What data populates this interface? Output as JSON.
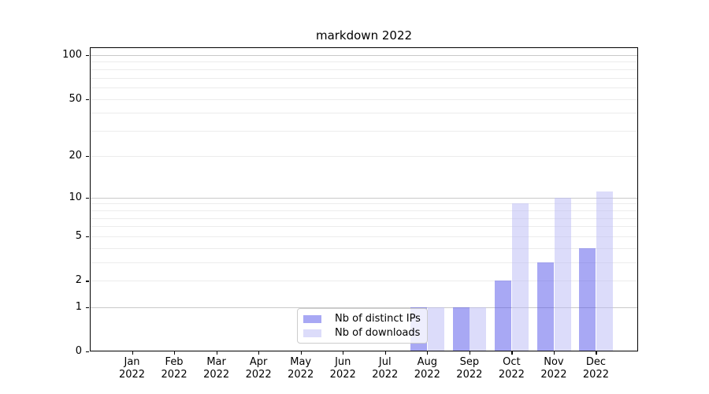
{
  "chart_data": {
    "type": "bar",
    "title": "markdown 2022",
    "categories": [
      "Jan 2022",
      "Feb 2022",
      "Mar 2022",
      "Apr 2022",
      "May 2022",
      "Jun 2022",
      "Jul 2022",
      "Aug 2022",
      "Sep 2022",
      "Oct 2022",
      "Nov 2022",
      "Dec 2022"
    ],
    "series": [
      {
        "name": "Nb of distinct IPs",
        "color": "#a8a8f4",
        "fill": "rgba(81,81,233,0.5)",
        "values": [
          0,
          0,
          0,
          0,
          0,
          0,
          0,
          1,
          1,
          2,
          3,
          4
        ]
      },
      {
        "name": "Nb of downloads",
        "color": "#dcdcfa",
        "fill": "rgba(185,185,245,0.5)",
        "values": [
          0,
          0,
          0,
          0,
          0,
          0,
          0,
          1,
          1,
          9,
          10,
          11
        ]
      }
    ],
    "y_scale": "log1p",
    "yticks": [
      0,
      1,
      2,
      5,
      10,
      20,
      50,
      100
    ],
    "major_gridlines": [
      1,
      10,
      100
    ],
    "minor_gridlines": [
      2,
      3,
      4,
      5,
      6,
      7,
      8,
      9,
      20,
      30,
      40,
      50,
      60,
      70,
      80,
      90
    ],
    "ylim": [
      0,
      113
    ],
    "grid": true,
    "legend_position": "lower center",
    "background_color": "#ffffff",
    "major_grid_color": "#c9c9c9",
    "minor_grid_color": "#ececec"
  }
}
